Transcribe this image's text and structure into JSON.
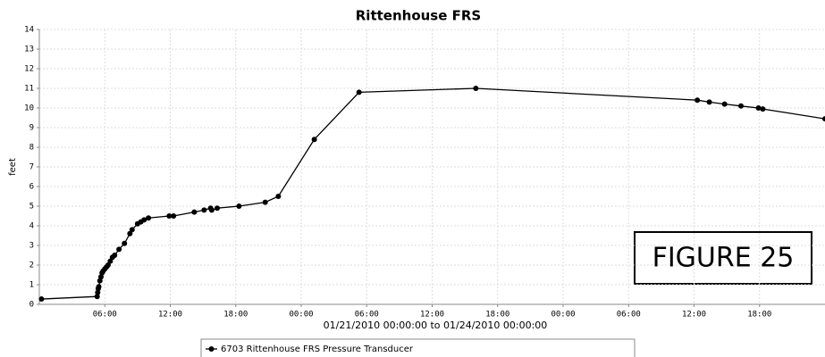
{
  "chart_data": {
    "type": "line",
    "title": "Rittenhouse FRS",
    "x_label": "01/21/2010 00:00:00 to 01/24/2010 00:00:00",
    "y_label": "feet",
    "annotation": "FIGURE 25",
    "xlim": [
      0,
      72
    ],
    "xticks": [
      {
        "value": 6,
        "label": "06:00"
      },
      {
        "value": 12,
        "label": "12:00"
      },
      {
        "value": 18,
        "label": "18:00"
      },
      {
        "value": 24,
        "label": "00:00"
      },
      {
        "value": 30,
        "label": "06:00"
      },
      {
        "value": 36,
        "label": "12:00"
      },
      {
        "value": 42,
        "label": "18:00"
      },
      {
        "value": 48,
        "label": "00:00"
      },
      {
        "value": 54,
        "label": "06:00"
      },
      {
        "value": 60,
        "label": "12:00"
      },
      {
        "value": 66,
        "label": "18:00"
      }
    ],
    "ylim": [
      0,
      14
    ],
    "yticks": [
      0,
      1,
      2,
      3,
      4,
      5,
      6,
      7,
      8,
      9,
      10,
      11,
      12,
      13,
      14
    ],
    "grid": true,
    "legend": "bottom",
    "x": [
      0.2,
      5.3,
      5.35,
      5.4,
      5.45,
      5.55,
      5.65,
      5.75,
      5.85,
      6.0,
      6.15,
      6.3,
      6.5,
      6.7,
      6.9,
      7.3,
      7.8,
      8.3,
      8.5,
      9.0,
      9.3,
      9.6,
      10.0,
      11.9,
      12.3,
      14.2,
      15.1,
      15.7,
      15.8,
      16.3,
      18.3,
      20.7,
      21.9,
      25.2,
      29.3,
      40.0,
      60.3,
      61.4,
      62.8,
      64.3,
      65.9,
      66.3,
      72
    ],
    "series": [
      {
        "name": "6703 Rittenhouse FRS Pressure Transducer",
        "color": "#000000",
        "values": [
          0.27,
          0.4,
          0.6,
          0.8,
          0.9,
          1.2,
          1.4,
          1.6,
          1.7,
          1.8,
          1.9,
          2.0,
          2.2,
          2.4,
          2.5,
          2.8,
          3.1,
          3.6,
          3.8,
          4.1,
          4.2,
          4.3,
          4.4,
          4.5,
          4.5,
          4.7,
          4.8,
          4.9,
          4.8,
          4.9,
          5.0,
          5.2,
          5.5,
          8.4,
          10.8,
          11.0,
          10.4,
          10.3,
          10.2,
          10.1,
          10.0,
          9.95,
          9.45
        ]
      }
    ]
  }
}
